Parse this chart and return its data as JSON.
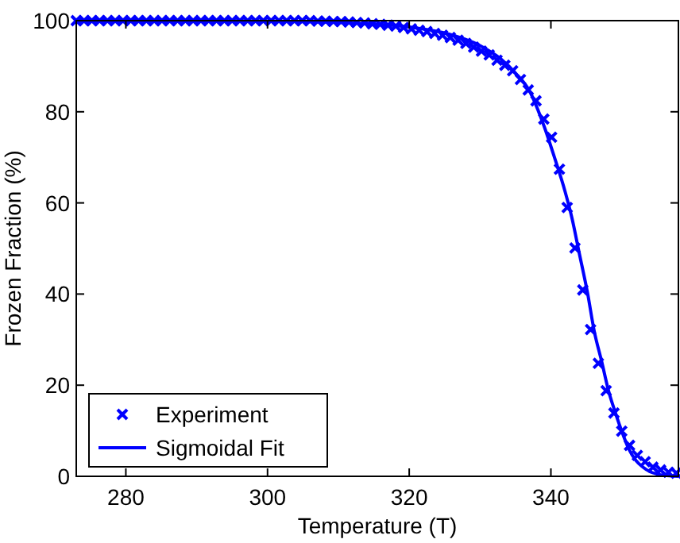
{
  "chart_data": {
    "type": "scatter",
    "xlabel": "Temperature (T)",
    "ylabel": "Frozen Fraction (%)",
    "xlim": [
      273,
      358
    ],
    "ylim": [
      0,
      100
    ],
    "xticks": [
      280,
      300,
      320,
      340
    ],
    "yticks": [
      0,
      20,
      40,
      60,
      80,
      100
    ],
    "grid": false,
    "legend": "bottom left",
    "series": [
      {
        "name": "Experiment",
        "marker": "cross",
        "color": "#0000ff",
        "x": [
          273.0,
          274.1,
          275.2,
          276.3,
          277.4,
          278.5,
          279.6,
          280.7,
          281.8,
          282.9,
          284.0,
          285.1,
          286.2,
          287.3,
          288.4,
          289.5,
          290.6,
          291.7,
          292.8,
          293.9,
          295.0,
          296.1,
          297.2,
          298.3,
          299.4,
          300.5,
          301.6,
          302.7,
          303.8,
          304.9,
          306.0,
          307.1,
          308.2,
          309.3,
          310.4,
          311.5,
          312.6,
          313.7,
          314.8,
          315.9,
          317.0,
          318.1,
          319.2,
          320.3,
          321.4,
          322.5,
          323.6,
          324.7,
          325.8,
          326.9,
          328.0,
          329.1,
          330.2,
          331.3,
          332.4,
          333.5,
          334.6,
          335.7,
          336.8,
          337.9,
          339.0,
          340.1,
          341.2,
          342.3,
          343.4,
          344.5,
          345.6,
          346.7,
          347.8,
          348.9,
          350.0,
          351.1,
          352.2,
          353.3,
          354.4,
          355.5,
          356.6,
          357.7
        ],
        "values": [
          100,
          100,
          100,
          100,
          100,
          100,
          100,
          100,
          100,
          100,
          100,
          100,
          100,
          100,
          100,
          100,
          100,
          100,
          100,
          100,
          100,
          100,
          100,
          100,
          100,
          100,
          100,
          100,
          100,
          100,
          100,
          99.9,
          99.9,
          99.8,
          99.8,
          99.7,
          99.6,
          99.5,
          99.3,
          99.2,
          99.0,
          98.8,
          98.5,
          98.2,
          97.9,
          97.6,
          97.2,
          96.8,
          96.3,
          95.7,
          95.0,
          94.2,
          93.3,
          92.5,
          91.3,
          90.2,
          89.0,
          87.1,
          84.8,
          82.4,
          78.4,
          74.4,
          67.4,
          59.0,
          50.1,
          40.9,
          32.2,
          24.8,
          18.8,
          13.9,
          9.9,
          6.8,
          4.6,
          3.2,
          2.0,
          1.4,
          0.9,
          0.7
        ]
      },
      {
        "name": "Sigmoidal Fit",
        "type": "line",
        "line_style": "solid",
        "color": "#0000ff",
        "x": [
          273,
          290,
          300,
          310,
          320,
          325,
          330,
          333,
          335,
          337,
          339,
          340.5,
          342,
          343,
          344,
          345.2,
          346.1,
          347.2,
          348.1,
          349.2,
          350.1,
          351,
          352,
          353,
          354,
          355,
          356,
          357,
          358
        ],
        "values": [
          100,
          100,
          99.9,
          99.6,
          98.6,
          97.3,
          94.5,
          91.5,
          88.5,
          84.5,
          77,
          70,
          62.5,
          56.5,
          49,
          40,
          32,
          25,
          19,
          13.5,
          9.5,
          6,
          3.5,
          2,
          1,
          0.5,
          0.2,
          0.1,
          0
        ]
      }
    ]
  }
}
